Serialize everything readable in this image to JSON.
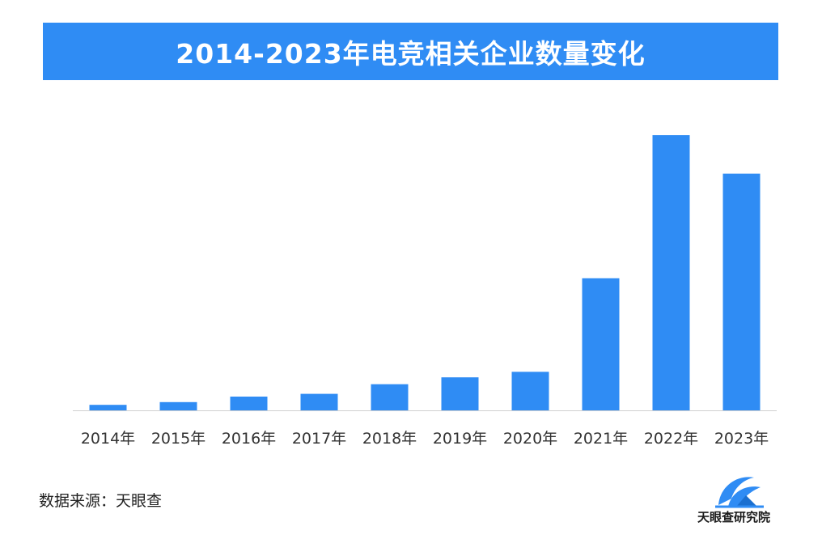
{
  "title": "2014-2023年电竞相关企业数量变化",
  "source": "数据来源：天眼查",
  "logo_text": "天眼查研究院",
  "colors": {
    "bar": "#2f8cf4",
    "banner": "#2f8cf4",
    "axis": "#d0d0d0"
  },
  "chart_data": {
    "type": "bar",
    "title": "2014-2023年电竞相关企业数量变化",
    "categories": [
      "2014年",
      "2015年",
      "2016年",
      "2017年",
      "2018年",
      "2019年",
      "2020年",
      "2021年",
      "2022年",
      "2023年"
    ],
    "values": [
      2,
      3,
      5,
      6,
      9.5,
      12,
      14,
      48,
      100,
      86
    ],
    "ylim": [
      0,
      105
    ],
    "xlabel": "",
    "ylabel": "",
    "grid": false,
    "legend": "none"
  }
}
